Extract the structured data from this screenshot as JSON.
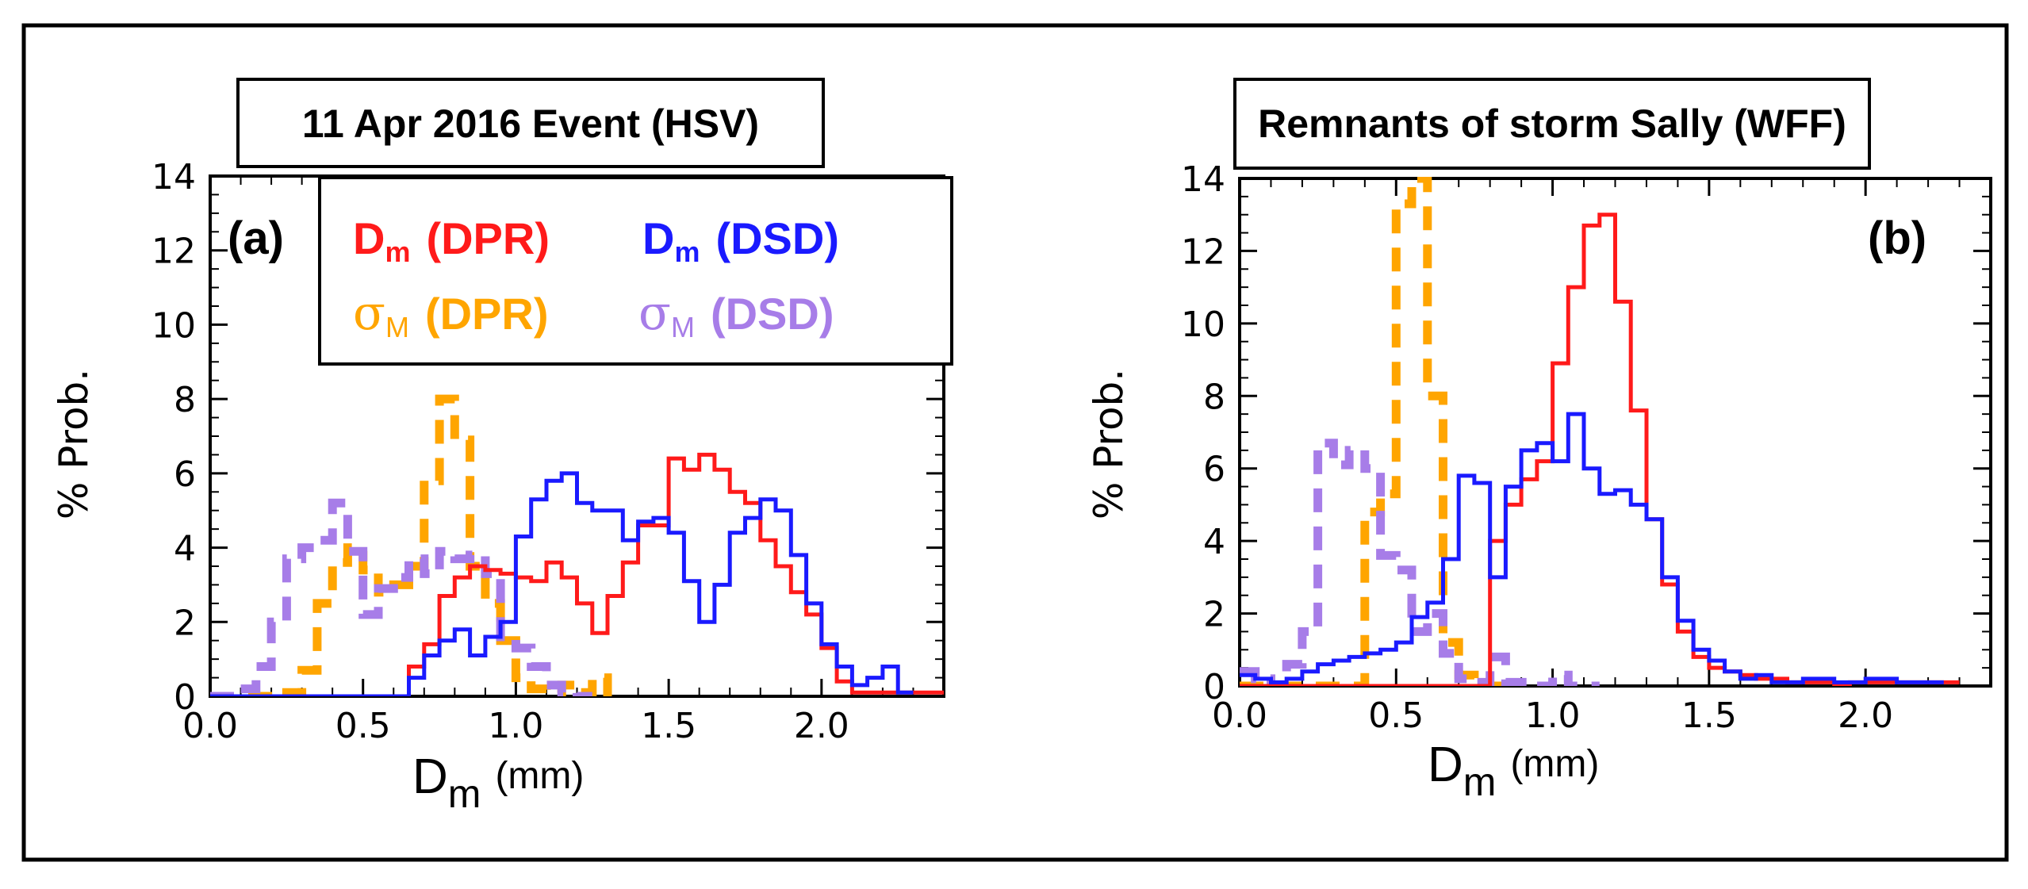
{
  "colors": {
    "dm_dpr": "#ff1a1a",
    "dm_dsd": "#1a1aff",
    "sigma_dpr": "#ffa500",
    "sigma_dsd": "#a77de8",
    "axis": "#000000"
  },
  "legend": {
    "dm_dpr": {
      "sym": "D",
      "sub": "m",
      "paren": "(DPR)"
    },
    "dm_dsd": {
      "sym": "D",
      "sub": "m",
      "paren": "(DSD)"
    },
    "sigma_dpr": {
      "sym": "σ",
      "sub": "M",
      "paren": "(DPR)"
    },
    "sigma_dsd": {
      "sym": "σ",
      "sub": "M",
      "paren": "(DSD)"
    }
  },
  "chart_data": [
    {
      "type": "line",
      "step": true,
      "panel": "(a)",
      "title": "11 Apr 2016 Event (HSV)",
      "xlabel": "D",
      "xlabel_sub": "m",
      "xlabel_units": "(mm)",
      "ylabel": "% Prob.",
      "xlim": [
        0,
        2.4
      ],
      "ylim": [
        0,
        14
      ],
      "xticks": [
        "0.0",
        "0.5",
        "1.0",
        "1.5",
        "2.0"
      ],
      "yticks": [
        "0",
        "2",
        "4",
        "6",
        "8",
        "10",
        "12",
        "14"
      ],
      "series": [
        {
          "name": "Dm (DPR)",
          "style": "solid",
          "x": [
            0.0,
            0.6,
            0.65,
            0.7,
            0.75,
            0.8,
            0.85,
            0.9,
            0.95,
            1.0,
            1.05,
            1.1,
            1.15,
            1.2,
            1.25,
            1.3,
            1.35,
            1.4,
            1.45,
            1.5,
            1.55,
            1.6,
            1.65,
            1.7,
            1.75,
            1.8,
            1.85,
            1.9,
            1.95,
            2.0,
            2.05,
            2.1,
            2.4
          ],
          "y": [
            0,
            0,
            0.8,
            1.4,
            2.7,
            3.2,
            3.5,
            3.4,
            3.3,
            3.2,
            3.1,
            3.6,
            3.2,
            2.5,
            1.7,
            2.7,
            3.6,
            4.6,
            4.6,
            6.4,
            6.1,
            6.5,
            6.1,
            5.5,
            5.2,
            4.2,
            3.5,
            2.8,
            2.2,
            1.3,
            0.4,
            0.1,
            0.1
          ]
        },
        {
          "name": "Dm (DSD)",
          "style": "solid",
          "x": [
            0.0,
            0.6,
            0.65,
            0.7,
            0.75,
            0.8,
            0.85,
            0.9,
            0.95,
            1.0,
            1.05,
            1.1,
            1.15,
            1.2,
            1.25,
            1.3,
            1.35,
            1.4,
            1.45,
            1.5,
            1.55,
            1.6,
            1.65,
            1.7,
            1.75,
            1.8,
            1.85,
            1.9,
            1.95,
            2.0,
            2.05,
            2.1,
            2.15,
            2.2,
            2.25
          ],
          "y": [
            0,
            0,
            0.5,
            1.1,
            1.5,
            1.8,
            1.1,
            1.6,
            2.0,
            4.3,
            5.3,
            5.8,
            6.0,
            5.2,
            5.0,
            5.0,
            4.2,
            4.7,
            4.8,
            4.4,
            3.1,
            2.0,
            3.0,
            4.4,
            4.8,
            5.3,
            5.0,
            3.8,
            2.5,
            1.4,
            0.8,
            0.3,
            0.5,
            0.8,
            0.1
          ]
        },
        {
          "name": "σM (DPR)",
          "style": "dashed",
          "x": [
            0.0,
            0.25,
            0.3,
            0.35,
            0.4,
            0.45,
            0.5,
            0.55,
            0.6,
            0.65,
            0.7,
            0.75,
            0.8,
            0.85,
            0.9,
            0.95,
            1.0,
            1.05,
            1.1,
            1.15,
            1.2,
            1.25,
            1.3
          ],
          "y": [
            0,
            0.1,
            0.7,
            2.5,
            3.6,
            4.0,
            3.4,
            2.8,
            3.0,
            3.5,
            5.8,
            8.0,
            6.9,
            3.5,
            2.5,
            1.5,
            0.5,
            0.2,
            0.1,
            0.3,
            0.1,
            0.5,
            0.0
          ]
        },
        {
          "name": "σM (DSD)",
          "style": "dashed",
          "x": [
            0.0,
            0.1,
            0.15,
            0.2,
            0.25,
            0.3,
            0.35,
            0.4,
            0.45,
            0.5,
            0.55,
            0.6,
            0.65,
            0.7,
            0.75,
            0.8,
            0.85,
            0.9,
            0.95,
            1.0,
            1.05,
            1.1,
            1.15,
            1.2
          ],
          "y": [
            0,
            0.2,
            0.8,
            2.0,
            3.7,
            4.0,
            4.2,
            5.2,
            3.9,
            2.2,
            2.9,
            3.2,
            3.7,
            3.3,
            3.9,
            3.7,
            3.8,
            3.3,
            1.6,
            1.3,
            0.8,
            0.3,
            0.1,
            0.0
          ]
        }
      ]
    },
    {
      "type": "line",
      "step": true,
      "panel": "(b)",
      "title": "Remnants of storm Sally (WFF)",
      "xlabel": "D",
      "xlabel_sub": "m",
      "xlabel_units": "(mm)",
      "ylabel": "% Prob.",
      "xlim": [
        0,
        2.4
      ],
      "ylim": [
        0,
        14
      ],
      "xticks": [
        "0.0",
        "0.5",
        "1.0",
        "1.5",
        "2.0"
      ],
      "yticks": [
        "0",
        "2",
        "4",
        "6",
        "8",
        "10",
        "12",
        "14"
      ],
      "series": [
        {
          "name": "Dm (DPR)",
          "style": "solid",
          "x": [
            0.0,
            0.75,
            0.8,
            0.85,
            0.9,
            0.95,
            1.0,
            1.05,
            1.1,
            1.15,
            1.2,
            1.25,
            1.3,
            1.35,
            1.4,
            1.45,
            1.5,
            1.55,
            1.6,
            1.65,
            1.7,
            1.75,
            1.8,
            1.85,
            1.9,
            1.95,
            2.0,
            2.05,
            2.1,
            2.2,
            2.25
          ],
          "y": [
            0,
            0,
            4.0,
            5.0,
            5.7,
            6.2,
            8.9,
            11.0,
            12.7,
            13.0,
            10.6,
            7.6,
            4.6,
            2.8,
            1.5,
            0.8,
            0.5,
            0.4,
            0.3,
            0.2,
            0.2,
            0.1,
            0.1,
            0.1,
            0.05,
            0.1,
            0.1,
            0.1,
            0.1,
            0.1,
            0.1
          ]
        },
        {
          "name": "Dm (DSD)",
          "style": "solid",
          "x": [
            0.0,
            0.05,
            0.1,
            0.15,
            0.2,
            0.25,
            0.3,
            0.35,
            0.4,
            0.45,
            0.5,
            0.55,
            0.6,
            0.65,
            0.7,
            0.75,
            0.8,
            0.85,
            0.9,
            0.95,
            1.0,
            1.05,
            1.1,
            1.15,
            1.2,
            1.25,
            1.3,
            1.35,
            1.4,
            1.45,
            1.5,
            1.55,
            1.6,
            1.65,
            1.7,
            1.8,
            1.9,
            2.0,
            2.1,
            2.2
          ],
          "y": [
            0.3,
            0.2,
            0.1,
            0.2,
            0.4,
            0.6,
            0.7,
            0.8,
            0.9,
            1.0,
            1.2,
            1.9,
            2.3,
            3.5,
            5.8,
            5.6,
            3.0,
            5.5,
            6.5,
            6.7,
            6.2,
            7.5,
            6.0,
            5.3,
            5.4,
            5.0,
            4.6,
            3.0,
            1.8,
            1.0,
            0.7,
            0.4,
            0.2,
            0.3,
            0.1,
            0.2,
            0.1,
            0.2,
            0.1,
            0.1
          ]
        },
        {
          "name": "σM (DPR)",
          "style": "dashed",
          "x": [
            0.0,
            0.35,
            0.4,
            0.45,
            0.5,
            0.55,
            0.6,
            0.65,
            0.7,
            0.75,
            0.8
          ],
          "y": [
            0,
            0.0,
            4.8,
            5.3,
            13.3,
            14.0,
            8.0,
            1.2,
            0.3,
            0.0,
            0.0
          ]
        },
        {
          "name": "σM (DSD)",
          "style": "dashed",
          "x": [
            0.0,
            0.05,
            0.1,
            0.15,
            0.2,
            0.25,
            0.3,
            0.35,
            0.4,
            0.45,
            0.5,
            0.55,
            0.6,
            0.65,
            0.7,
            0.75,
            0.8,
            0.85,
            0.9,
            0.95,
            1.0,
            1.05,
            1.1
          ],
          "y": [
            0.4,
            0.2,
            0.0,
            0.6,
            1.5,
            6.7,
            6.1,
            6.5,
            6.0,
            3.6,
            3.2,
            1.5,
            2.0,
            0.9,
            0.2,
            0.1,
            0.8,
            0.1,
            0.1,
            0.0,
            0.3,
            0.0,
            0.0
          ]
        }
      ]
    }
  ]
}
